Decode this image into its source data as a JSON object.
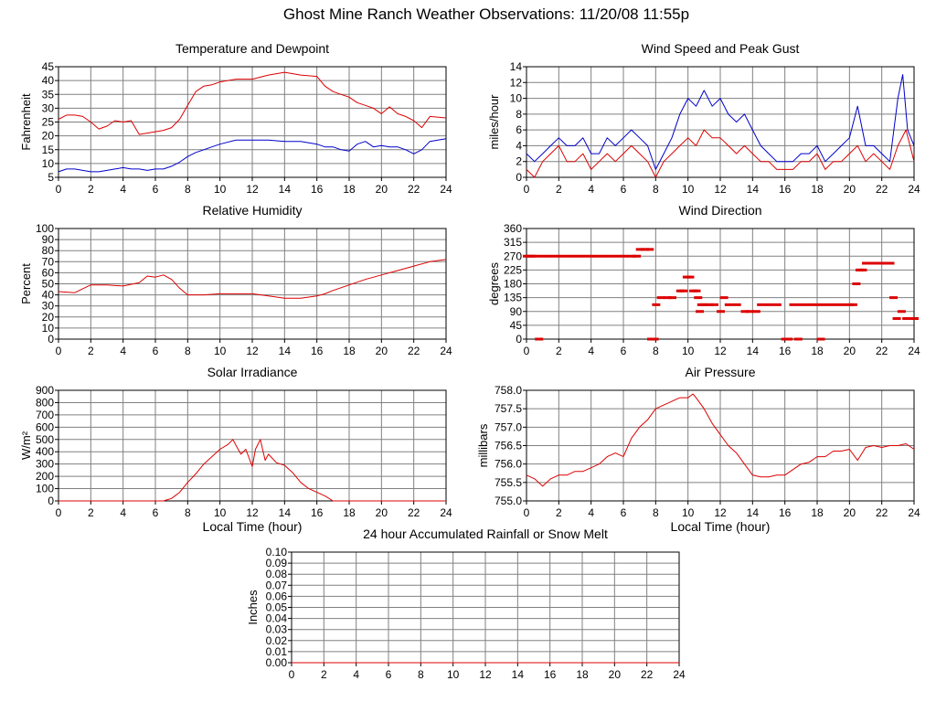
{
  "page": {
    "title": "Ghost Mine Ranch Weather Observations: 11/20/08 11:55p"
  },
  "colors": {
    "grid": "#808080",
    "red": "#dd0000",
    "blue": "#0000cc",
    "axis": "#000000"
  },
  "chart_data": [
    {
      "id": "temp",
      "type": "line",
      "title": "Temperature and Dewpoint",
      "xlabel": "",
      "ylabel": "Fahrenheit",
      "xlim": [
        0,
        24
      ],
      "ylim": [
        5,
        45
      ],
      "xticks": [
        0,
        2,
        4,
        6,
        8,
        10,
        12,
        14,
        16,
        18,
        20,
        22,
        24
      ],
      "yticks": [
        5,
        10,
        15,
        20,
        25,
        30,
        35,
        40,
        45
      ],
      "ytick_labels": [
        "5",
        "10",
        "15",
        "20",
        "25",
        "30",
        "35",
        "40",
        "45"
      ],
      "grid": true,
      "series": [
        {
          "color": "#dd0000",
          "x": [
            0,
            0.5,
            1,
            1.5,
            2,
            2.5,
            3,
            3.5,
            4,
            4.5,
            5,
            5.5,
            6,
            6.5,
            7,
            7.5,
            8,
            8.5,
            9,
            9.5,
            10,
            11,
            12,
            13,
            14,
            14.5,
            15,
            16,
            16.5,
            17,
            17.5,
            18,
            18.5,
            19,
            19.5,
            20,
            20.5,
            21,
            21.5,
            22,
            22.5,
            23,
            24
          ],
          "y": [
            26,
            27.5,
            27.5,
            27,
            25,
            22.5,
            23.5,
            25.5,
            25,
            25.5,
            20.5,
            21,
            21.5,
            22,
            23,
            26,
            31,
            36,
            38,
            38.5,
            39.5,
            40.5,
            40.5,
            42,
            43,
            42.5,
            42,
            41.5,
            38,
            36,
            35,
            34,
            32,
            31,
            30,
            28,
            30.5,
            28,
            27,
            25.5,
            23,
            27,
            26.5
          ]
        },
        {
          "color": "#0000cc",
          "x": [
            0,
            0.5,
            1,
            1.5,
            2,
            2.5,
            3,
            3.5,
            4,
            4.5,
            5,
            5.5,
            6,
            6.5,
            7,
            7.5,
            8,
            8.5,
            9,
            9.5,
            10,
            11,
            12,
            13,
            14,
            15,
            16,
            16.5,
            17,
            17.5,
            18,
            18.5,
            19,
            19.5,
            20,
            20.5,
            21,
            21.5,
            22,
            22.5,
            23,
            24
          ],
          "y": [
            7,
            8,
            8,
            7.5,
            7,
            7,
            7.5,
            8,
            8.5,
            8,
            8,
            7.5,
            8,
            8,
            9,
            10.5,
            12.5,
            14,
            15,
            16,
            17,
            18.5,
            18.5,
            18.5,
            18,
            18,
            17,
            16,
            16,
            15,
            14.5,
            17,
            18,
            16,
            16.5,
            16,
            16,
            15,
            13.5,
            15,
            18,
            19
          ]
        }
      ]
    },
    {
      "id": "wind",
      "type": "line",
      "title": "Wind Speed and Peak Gust",
      "xlabel": "",
      "ylabel": "miles/hour",
      "xlim": [
        0,
        24
      ],
      "ylim": [
        0,
        14
      ],
      "xticks": [
        0,
        2,
        4,
        6,
        8,
        10,
        12,
        14,
        16,
        18,
        20,
        22,
        24
      ],
      "yticks": [
        0,
        2,
        4,
        6,
        8,
        10,
        12,
        14
      ],
      "ytick_labels": [
        "0",
        "2",
        "4",
        "6",
        "8",
        "10",
        "12",
        "14"
      ],
      "grid": true,
      "series": [
        {
          "color": "#0000cc",
          "x": [
            0,
            0.5,
            1,
            1.5,
            2,
            2.5,
            3,
            3.5,
            4,
            4.5,
            5,
            5.5,
            6,
            6.5,
            7,
            7.5,
            8,
            8.5,
            9,
            9.5,
            10,
            10.5,
            11,
            11.5,
            12,
            12.5,
            13,
            13.5,
            14,
            14.5,
            15,
            15.5,
            16,
            16.5,
            17,
            17.5,
            18,
            18.5,
            19,
            19.5,
            20,
            20.5,
            21,
            21.5,
            22,
            22.5,
            23,
            23.3,
            23.6,
            24
          ],
          "y": [
            3,
            2,
            3,
            4,
            5,
            4,
            4,
            5,
            3,
            3,
            5,
            4,
            5,
            6,
            5,
            4,
            1,
            3,
            5,
            8,
            10,
            9,
            11,
            9,
            10,
            8,
            7,
            8,
            6,
            4,
            3,
            2,
            2,
            2,
            3,
            3,
            4,
            2,
            3,
            4,
            5,
            9,
            4,
            4,
            3,
            2,
            10,
            13,
            6,
            4
          ]
        },
        {
          "color": "#dd0000",
          "x": [
            0,
            0.5,
            1,
            1.5,
            2,
            2.5,
            3,
            3.5,
            4,
            4.5,
            5,
            5.5,
            6,
            6.5,
            7,
            7.5,
            8,
            8.5,
            9,
            9.5,
            10,
            10.5,
            11,
            11.5,
            12,
            12.5,
            13,
            13.5,
            14,
            14.5,
            15,
            15.5,
            16,
            16.5,
            17,
            17.5,
            18,
            18.5,
            19,
            19.5,
            20,
            20.5,
            21,
            21.5,
            22,
            22.5,
            23,
            23.5,
            24
          ],
          "y": [
            1,
            0,
            2,
            3,
            4,
            2,
            2,
            3,
            1,
            2,
            3,
            2,
            3,
            4,
            3,
            2,
            0,
            2,
            3,
            4,
            5,
            4,
            6,
            5,
            5,
            4,
            3,
            4,
            3,
            2,
            2,
            1,
            1,
            1,
            2,
            2,
            3,
            1,
            2,
            2,
            3,
            4,
            2,
            3,
            2,
            1,
            4,
            6,
            2
          ]
        }
      ]
    },
    {
      "id": "humidity",
      "type": "line",
      "title": "Relative Humidity",
      "xlabel": "",
      "ylabel": "Percent",
      "xlim": [
        0,
        24
      ],
      "ylim": [
        0,
        100
      ],
      "xticks": [
        0,
        2,
        4,
        6,
        8,
        10,
        12,
        14,
        16,
        18,
        20,
        22,
        24
      ],
      "yticks": [
        0,
        10,
        20,
        30,
        40,
        50,
        60,
        70,
        80,
        90,
        100
      ],
      "ytick_labels": [
        "0",
        "10",
        "20",
        "30",
        "40",
        "50",
        "60",
        "70",
        "80",
        "90",
        "100"
      ],
      "grid": true,
      "series": [
        {
          "color": "#dd0000",
          "x": [
            0,
            1,
            2,
            3,
            4,
            5,
            5.5,
            6,
            6.5,
            7,
            7.5,
            8,
            9,
            10,
            11,
            12,
            13,
            14,
            15,
            16,
            16.5,
            17,
            18,
            19,
            20,
            21,
            22,
            23,
            24
          ],
          "y": [
            43,
            42,
            49,
            49,
            48,
            51,
            57,
            56,
            58,
            54,
            46,
            40,
            40,
            41,
            41,
            41,
            39,
            37,
            37,
            39,
            41,
            44,
            49,
            54,
            58,
            62,
            66,
            70,
            72
          ]
        }
      ]
    },
    {
      "id": "wind_dir",
      "type": "scatter",
      "title": "Wind Direction",
      "xlabel": "",
      "ylabel": "degrees",
      "xlim": [
        0,
        24
      ],
      "ylim": [
        0,
        360
      ],
      "xticks": [
        0,
        2,
        4,
        6,
        8,
        10,
        12,
        14,
        16,
        18,
        20,
        22,
        24
      ],
      "yticks": [
        0,
        45,
        90,
        135,
        180,
        225,
        270,
        315,
        360
      ],
      "ytick_labels": [
        "0",
        "45",
        "90",
        "135",
        "180",
        "225",
        "270",
        "315",
        "360"
      ],
      "grid": true,
      "series": [
        {
          "color": "#dd0000",
          "x": [
            0,
            0.25,
            0.5,
            0.75,
            1,
            1.5,
            2,
            2.5,
            3,
            3.5,
            4,
            4.5,
            5,
            5.5,
            6,
            6.5,
            6.8,
            7,
            7.3,
            7.6,
            7.7,
            7.9,
            8,
            8.3,
            8.7,
            9,
            9.5,
            9.7,
            9.9,
            10.1,
            10.3,
            10.5,
            10.6,
            10.7,
            10.8,
            11,
            11.3,
            11.6,
            12,
            12.2,
            12.5,
            13,
            13.5,
            13.8,
            14.2,
            14.5,
            15,
            15.5,
            16,
            16.2,
            16.5,
            16.8,
            17,
            17.5,
            18,
            18.2,
            18.5,
            19,
            19.5,
            20,
            20.2,
            20.4,
            20.6,
            20.8,
            21,
            21.5,
            22,
            22.5,
            22.7,
            22.9,
            23.2,
            23.5,
            24
          ],
          "y": [
            270,
            270,
            270,
            0,
            270,
            270,
            270,
            270,
            270,
            270,
            270,
            270,
            270,
            270,
            270,
            270,
            270,
            292,
            292,
            292,
            0,
            0,
            112,
            135,
            135,
            135,
            157,
            157,
            202,
            202,
            157,
            157,
            135,
            90,
            112,
            112,
            112,
            112,
            90,
            135,
            112,
            112,
            90,
            90,
            90,
            112,
            112,
            112,
            0,
            0,
            112,
            0,
            112,
            112,
            112,
            0,
            112,
            112,
            112,
            112,
            112,
            180,
            225,
            225,
            247,
            247,
            247,
            247,
            135,
            67,
            90,
            67,
            67
          ]
        }
      ]
    },
    {
      "id": "solar",
      "type": "line",
      "title": "Solar Irradiance",
      "xlabel": "Local Time (hour)",
      "ylabel": "W/m²",
      "xlim": [
        0,
        24
      ],
      "ylim": [
        0,
        900
      ],
      "xticks": [
        0,
        2,
        4,
        6,
        8,
        10,
        12,
        14,
        16,
        18,
        20,
        22,
        24
      ],
      "yticks": [
        0,
        100,
        200,
        300,
        400,
        500,
        600,
        700,
        800,
        900
      ],
      "ytick_labels": [
        "0",
        "100",
        "200",
        "300",
        "400",
        "500",
        "600",
        "700",
        "800",
        "900"
      ],
      "grid": true,
      "series": [
        {
          "color": "#dd0000",
          "x": [
            0,
            6.5,
            7,
            7.5,
            8,
            8.5,
            9,
            9.5,
            10,
            10.5,
            10.8,
            11,
            11.3,
            11.6,
            12,
            12.2,
            12.5,
            12.8,
            13,
            13.5,
            14,
            14.5,
            15,
            15.5,
            16,
            16.5,
            17,
            24
          ],
          "y": [
            0,
            0,
            20,
            70,
            150,
            220,
            300,
            360,
            420,
            460,
            500,
            450,
            380,
            420,
            280,
            420,
            500,
            330,
            380,
            310,
            290,
            230,
            150,
            100,
            70,
            40,
            0,
            0
          ]
        }
      ]
    },
    {
      "id": "pressure",
      "type": "line",
      "title": "Air Pressure",
      "xlabel": "Local Time (hour)",
      "ylabel": "millibars",
      "xlim": [
        0,
        24
      ],
      "ylim": [
        755.0,
        758.0
      ],
      "xticks": [
        0,
        2,
        4,
        6,
        8,
        10,
        12,
        14,
        16,
        18,
        20,
        22,
        24
      ],
      "yticks": [
        755.0,
        755.5,
        756.0,
        756.5,
        757.0,
        757.5,
        758.0
      ],
      "ytick_labels": [
        "755.0",
        "755.5",
        "756.0",
        "756.5",
        "757.0",
        "757.5",
        "758.0"
      ],
      "grid": true,
      "series": [
        {
          "color": "#dd0000",
          "x": [
            0,
            0.5,
            1,
            1.5,
            2,
            2.5,
            3,
            3.5,
            4,
            4.5,
            5,
            5.5,
            6,
            6.5,
            7,
            7.5,
            8,
            8.5,
            9,
            9.5,
            10,
            10.3,
            10.5,
            11,
            11.5,
            12,
            12.5,
            13,
            13.5,
            14,
            14.5,
            15,
            15.5,
            16,
            16.5,
            17,
            17.5,
            18,
            18.5,
            19,
            19.5,
            20,
            20.5,
            21,
            21.5,
            22,
            22.5,
            23,
            23.5,
            24
          ],
          "y": [
            755.7,
            755.6,
            755.4,
            755.6,
            755.7,
            755.7,
            755.8,
            755.8,
            755.9,
            756.0,
            756.2,
            756.3,
            756.2,
            756.7,
            757.0,
            757.2,
            757.5,
            757.6,
            757.7,
            757.8,
            757.8,
            757.9,
            757.8,
            757.5,
            757.1,
            756.8,
            756.5,
            756.3,
            756.0,
            755.7,
            755.65,
            755.65,
            755.7,
            755.7,
            755.85,
            756.0,
            756.05,
            756.2,
            756.2,
            756.35,
            756.35,
            756.4,
            756.1,
            756.45,
            756.5,
            756.45,
            756.5,
            756.5,
            756.55,
            756.4
          ]
        }
      ]
    },
    {
      "id": "rain",
      "type": "line",
      "title": "24 hour Accumulated Rainfall or Snow Melt",
      "xlabel": "",
      "ylabel": "Inches",
      "xlim": [
        0,
        24
      ],
      "ylim": [
        0,
        0.1
      ],
      "xticks": [
        0,
        2,
        4,
        6,
        8,
        10,
        12,
        14,
        16,
        18,
        20,
        22,
        24
      ],
      "yticks": [
        0,
        0.01,
        0.02,
        0.03,
        0.04,
        0.05,
        0.06,
        0.07,
        0.08,
        0.09,
        0.1
      ],
      "ytick_labels": [
        "0.00",
        "0.01",
        "0.02",
        "0.03",
        "0.04",
        "0.05",
        "0.06",
        "0.07",
        "0.08",
        "0.09",
        "0.10"
      ],
      "grid": true,
      "series": [
        {
          "color": "#dd0000",
          "x": [
            0,
            24
          ],
          "y": [
            0,
            0
          ]
        }
      ]
    }
  ]
}
